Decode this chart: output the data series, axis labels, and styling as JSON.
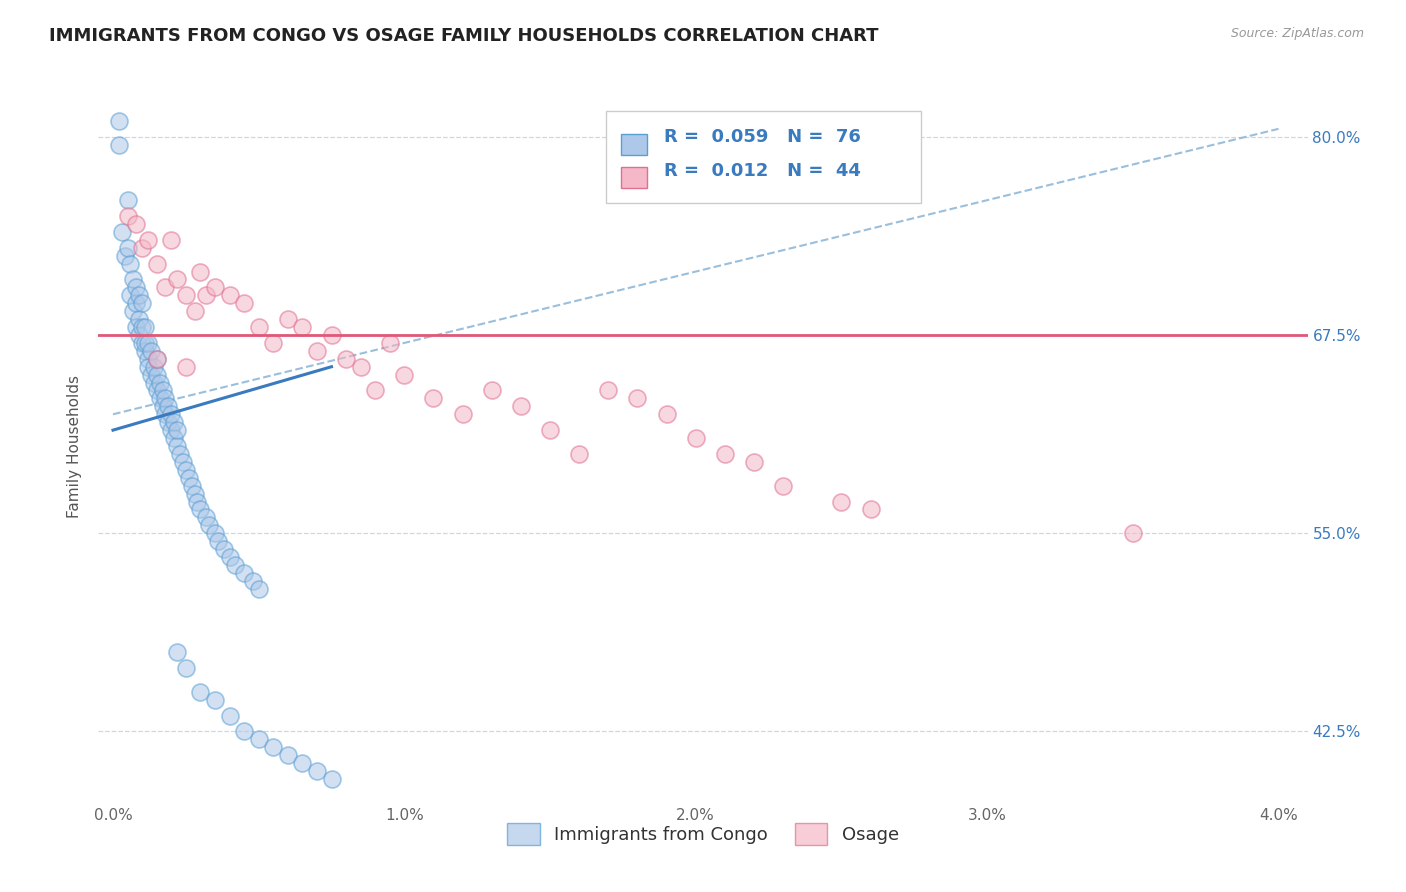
{
  "title": "IMMIGRANTS FROM CONGO VS OSAGE FAMILY HOUSEHOLDS CORRELATION CHART",
  "source_text": "Source: ZipAtlas.com",
  "ylabel": "Family Households",
  "legend_label1": "Immigrants from Congo",
  "legend_label2": "Osage",
  "R1": "0.059",
  "N1": "76",
  "R2": "0.012",
  "N2": "44",
  "xlim": [
    -0.05,
    4.1
  ],
  "ylim": [
    38.0,
    83.0
  ],
  "xticks": [
    0.0,
    1.0,
    2.0,
    3.0,
    4.0
  ],
  "xticklabels": [
    "0.0%",
    "1.0%",
    "2.0%",
    "3.0%",
    "4.0%"
  ],
  "ytick_positions": [
    42.5,
    55.0,
    67.5,
    80.0
  ],
  "ytick_labels": [
    "42.5%",
    "55.0%",
    "67.5%",
    "80.0%"
  ],
  "color_blue": "#adc8e8",
  "color_pink": "#f4b8c8",
  "color_blue_edge": "#5a9fd4",
  "color_pink_edge": "#e07090",
  "color_blue_line": "#3a7abf",
  "color_pink_line": "#e05878",
  "color_dashed": "#90b8d8",
  "background_color": "#ffffff",
  "grid_color": "#c8d8e8",
  "blue_scatter_x": [
    0.02,
    0.02,
    0.03,
    0.04,
    0.05,
    0.05,
    0.06,
    0.06,
    0.07,
    0.07,
    0.08,
    0.08,
    0.08,
    0.09,
    0.09,
    0.09,
    0.1,
    0.1,
    0.1,
    0.11,
    0.11,
    0.11,
    0.12,
    0.12,
    0.12,
    0.13,
    0.13,
    0.14,
    0.14,
    0.15,
    0.15,
    0.15,
    0.16,
    0.16,
    0.17,
    0.17,
    0.18,
    0.18,
    0.19,
    0.19,
    0.2,
    0.2,
    0.21,
    0.21,
    0.22,
    0.22,
    0.23,
    0.24,
    0.25,
    0.26,
    0.27,
    0.28,
    0.29,
    0.3,
    0.32,
    0.33,
    0.35,
    0.36,
    0.38,
    0.4,
    0.42,
    0.45,
    0.48,
    0.5,
    0.22,
    0.25,
    0.3,
    0.35,
    0.4,
    0.45,
    0.5,
    0.55,
    0.6,
    0.65,
    0.7,
    0.75
  ],
  "blue_scatter_y": [
    81.0,
    79.5,
    74.0,
    72.5,
    73.0,
    76.0,
    70.0,
    72.0,
    69.0,
    71.0,
    69.5,
    68.0,
    70.5,
    67.5,
    68.5,
    70.0,
    67.0,
    68.0,
    69.5,
    66.5,
    67.0,
    68.0,
    66.0,
    67.0,
    65.5,
    65.0,
    66.5,
    64.5,
    65.5,
    64.0,
    65.0,
    66.0,
    63.5,
    64.5,
    63.0,
    64.0,
    62.5,
    63.5,
    62.0,
    63.0,
    61.5,
    62.5,
    61.0,
    62.0,
    60.5,
    61.5,
    60.0,
    59.5,
    59.0,
    58.5,
    58.0,
    57.5,
    57.0,
    56.5,
    56.0,
    55.5,
    55.0,
    54.5,
    54.0,
    53.5,
    53.0,
    52.5,
    52.0,
    51.5,
    47.5,
    46.5,
    45.0,
    44.5,
    43.5,
    42.5,
    42.0,
    41.5,
    41.0,
    40.5,
    40.0,
    39.5
  ],
  "pink_scatter_x": [
    0.05,
    0.08,
    0.1,
    0.12,
    0.15,
    0.18,
    0.2,
    0.22,
    0.25,
    0.28,
    0.3,
    0.32,
    0.35,
    0.4,
    0.45,
    0.5,
    0.55,
    0.6,
    0.65,
    0.7,
    0.75,
    0.8,
    0.85,
    0.9,
    0.95,
    1.0,
    1.1,
    1.2,
    1.3,
    1.4,
    1.5,
    1.6,
    1.7,
    1.8,
    1.9,
    2.0,
    2.1,
    2.2,
    2.3,
    2.5,
    2.6,
    3.5,
    0.15,
    0.25
  ],
  "pink_scatter_y": [
    75.0,
    74.5,
    73.0,
    73.5,
    72.0,
    70.5,
    73.5,
    71.0,
    70.0,
    69.0,
    71.5,
    70.0,
    70.5,
    70.0,
    69.5,
    68.0,
    67.0,
    68.5,
    68.0,
    66.5,
    67.5,
    66.0,
    65.5,
    64.0,
    67.0,
    65.0,
    63.5,
    62.5,
    64.0,
    63.0,
    61.5,
    60.0,
    64.0,
    63.5,
    62.5,
    61.0,
    60.0,
    59.5,
    58.0,
    57.0,
    56.5,
    55.0,
    66.0,
    65.5
  ],
  "blue_line_x": [
    0.0,
    0.75
  ],
  "blue_line_y": [
    61.5,
    65.5
  ],
  "pink_line_y": 67.5,
  "dashed_line_x": [
    0.0,
    4.0
  ],
  "dashed_line_y": [
    62.5,
    80.5
  ],
  "title_fontsize": 13,
  "axis_label_fontsize": 11,
  "tick_fontsize": 11,
  "legend_fontsize": 13
}
